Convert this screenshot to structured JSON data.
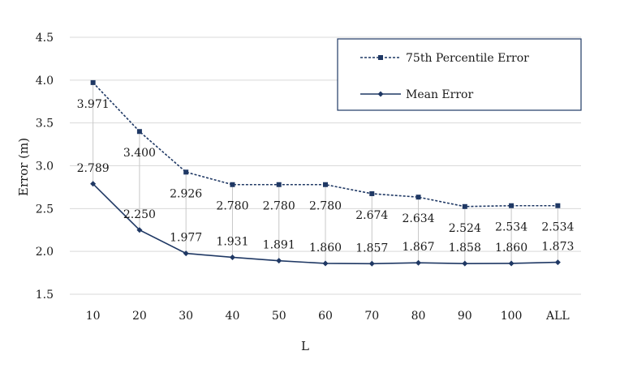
{
  "chart_data": {
    "type": "line",
    "title": "",
    "xlabel": "L",
    "ylabel": "Error (m)",
    "categories": [
      "10",
      "20",
      "30",
      "40",
      "50",
      "60",
      "70",
      "80",
      "90",
      "100",
      "ALL"
    ],
    "ylim": [
      1.5,
      4.5
    ],
    "yticks": [
      "1.5",
      "2.0",
      "2.5",
      "3.0",
      "3.5",
      "4.0",
      "4.5"
    ],
    "grid": true,
    "legend_position": "top-right",
    "series": [
      {
        "name": "75th Percentile Error",
        "values": [
          3.971,
          3.4,
          2.926,
          2.78,
          2.78,
          2.78,
          2.674,
          2.634,
          2.524,
          2.534,
          2.534
        ],
        "labels": [
          "3.971",
          "3.400",
          "2.926",
          "2.780",
          "2.780",
          "2.780",
          "2.674",
          "2.634",
          "2.524",
          "2.534",
          "2.534"
        ],
        "line_style": "dashed",
        "marker": "square",
        "color": "#1f3864"
      },
      {
        "name": "Mean Error",
        "values": [
          2.789,
          2.25,
          1.977,
          1.931,
          1.891,
          1.86,
          1.857,
          1.867,
          1.858,
          1.86,
          1.873
        ],
        "labels": [
          "2.789",
          "2.250",
          "1.977",
          "1.931",
          "1.891",
          "1.860",
          "1.857",
          "1.867",
          "1.858",
          "1.860",
          "1.873"
        ],
        "line_style": "solid",
        "marker": "diamond",
        "color": "#1f3864"
      }
    ]
  }
}
